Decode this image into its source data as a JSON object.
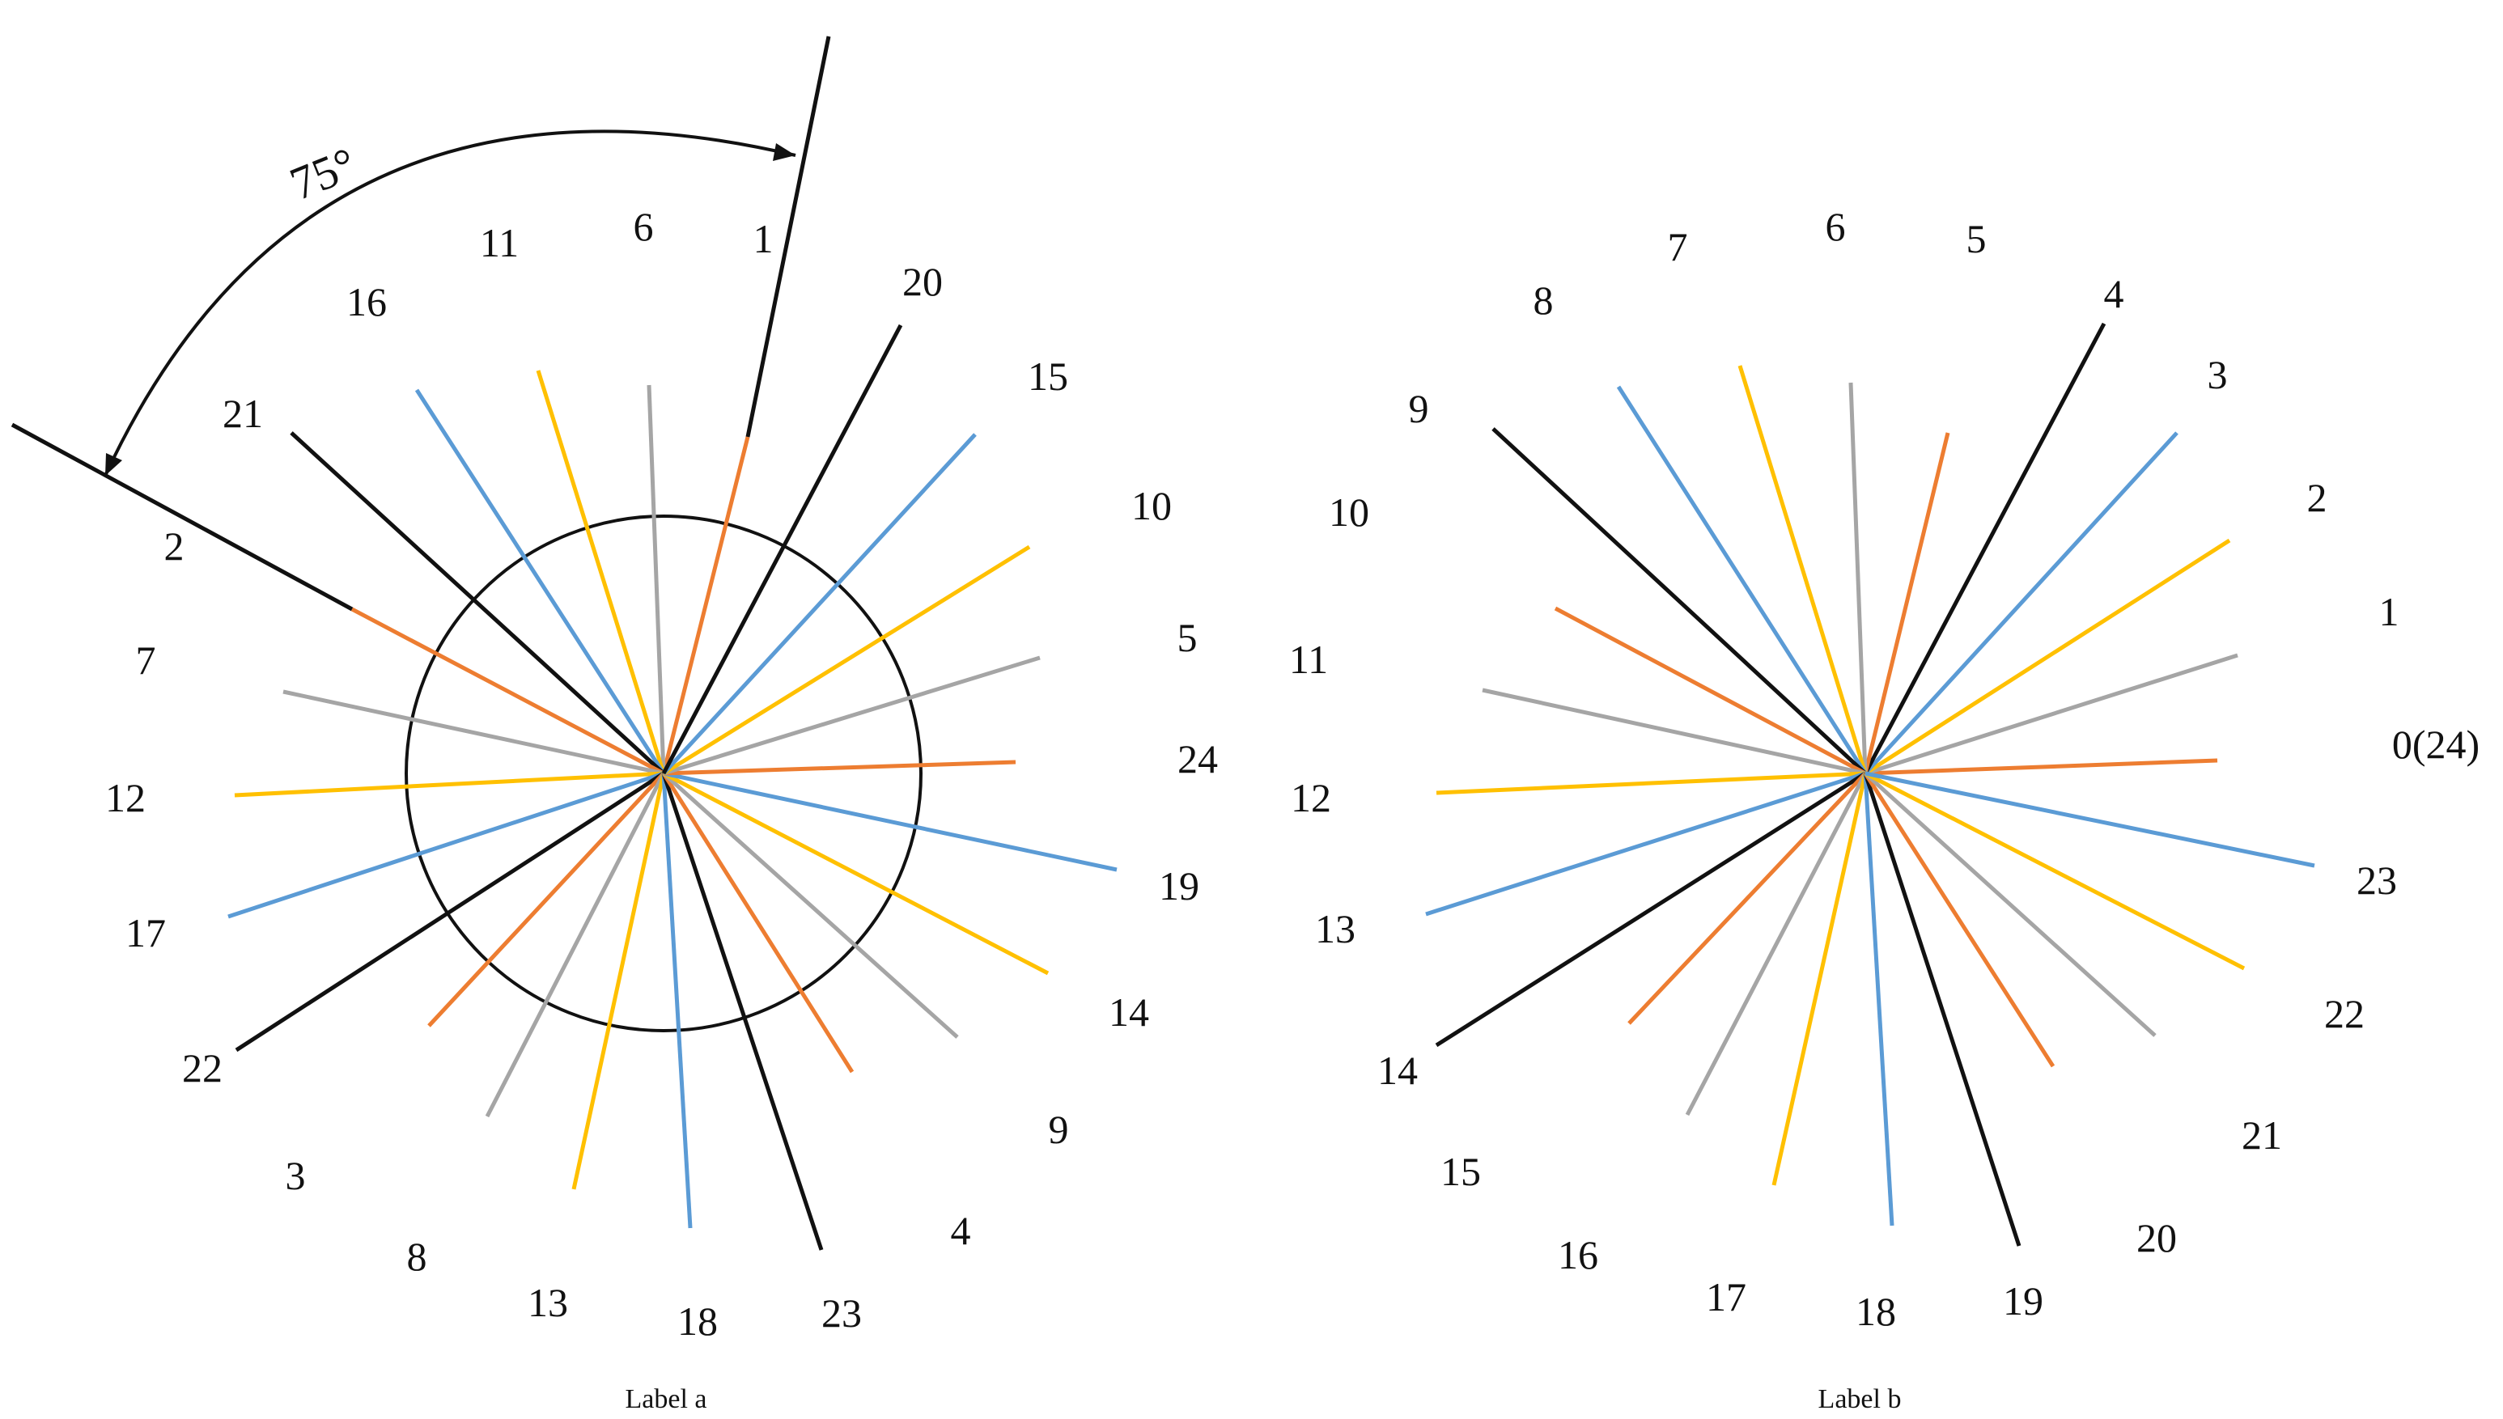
{
  "colors": {
    "black": "#111111",
    "orange": "#ed7d31",
    "gray": "#a5a5a5",
    "yellow": "#ffc000",
    "blue": "#5b9bd5"
  },
  "panel_a": {
    "caption": "Label a",
    "angle_label": "75°",
    "labels": [
      {
        "id": "a-1",
        "text": "1"
      },
      {
        "id": "a-2",
        "text": "2"
      },
      {
        "id": "a-3",
        "text": "3"
      },
      {
        "id": "a-4",
        "text": "4"
      },
      {
        "id": "a-5",
        "text": "5"
      },
      {
        "id": "a-6",
        "text": "6"
      },
      {
        "id": "a-7",
        "text": "7"
      },
      {
        "id": "a-8",
        "text": "8"
      },
      {
        "id": "a-9",
        "text": "9"
      },
      {
        "id": "a-10",
        "text": "10"
      },
      {
        "id": "a-11",
        "text": "11"
      },
      {
        "id": "a-12",
        "text": "12"
      },
      {
        "id": "a-13",
        "text": "13"
      },
      {
        "id": "a-14",
        "text": "14"
      },
      {
        "id": "a-15",
        "text": "15"
      },
      {
        "id": "a-16",
        "text": "16"
      },
      {
        "id": "a-17",
        "text": "17"
      },
      {
        "id": "a-18",
        "text": "18"
      },
      {
        "id": "a-19",
        "text": "19"
      },
      {
        "id": "a-20",
        "text": "20"
      },
      {
        "id": "a-21",
        "text": "21"
      },
      {
        "id": "a-22",
        "text": "22"
      },
      {
        "id": "a-23",
        "text": "23"
      },
      {
        "id": "a-24",
        "text": "24"
      }
    ]
  },
  "panel_b": {
    "caption": "Label b",
    "labels": [
      {
        "id": "b-0",
        "text": "0(24)"
      },
      {
        "id": "b-1",
        "text": "1"
      },
      {
        "id": "b-2",
        "text": "2"
      },
      {
        "id": "b-3",
        "text": "3"
      },
      {
        "id": "b-4",
        "text": "4"
      },
      {
        "id": "b-5",
        "text": "5"
      },
      {
        "id": "b-6",
        "text": "6"
      },
      {
        "id": "b-7",
        "text": "7"
      },
      {
        "id": "b-8",
        "text": "8"
      },
      {
        "id": "b-9",
        "text": "9"
      },
      {
        "id": "b-10",
        "text": "10"
      },
      {
        "id": "b-11",
        "text": "11"
      },
      {
        "id": "b-12",
        "text": "12"
      },
      {
        "id": "b-13",
        "text": "13"
      },
      {
        "id": "b-14",
        "text": "14"
      },
      {
        "id": "b-15",
        "text": "15"
      },
      {
        "id": "b-16",
        "text": "16"
      },
      {
        "id": "b-17",
        "text": "17"
      },
      {
        "id": "b-18",
        "text": "18"
      },
      {
        "id": "b-19",
        "text": "19"
      },
      {
        "id": "b-20",
        "text": "20"
      },
      {
        "id": "b-21",
        "text": "21"
      },
      {
        "id": "b-22",
        "text": "22"
      },
      {
        "id": "b-23",
        "text": "23"
      }
    ]
  }
}
